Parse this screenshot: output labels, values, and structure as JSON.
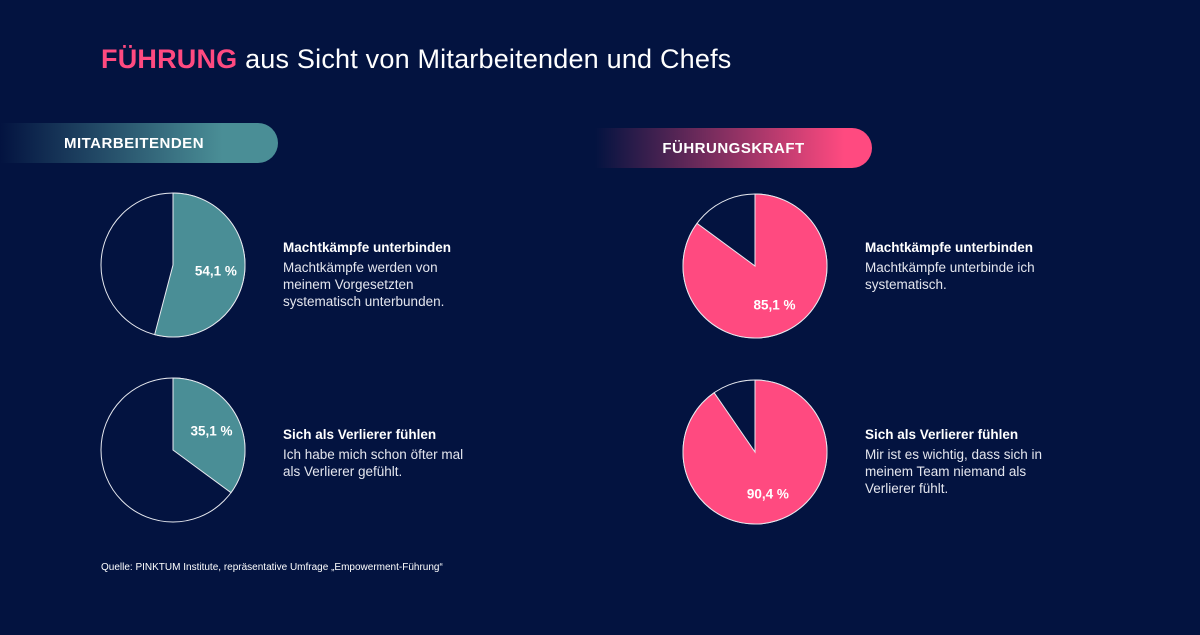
{
  "title": {
    "highlight": "FÜHRUNG",
    "rest": " aus Sicht von Mitarbeitenden und Chefs"
  },
  "colors": {
    "background": "#031340",
    "employee": "#4a8e96",
    "leader": "#ff4a80",
    "outline": "#e8eaf0"
  },
  "chart_data": [
    {
      "type": "pie",
      "group": "MITARBEITENDEN",
      "label": "54,1 %",
      "value": 54.1,
      "rest": 45.9,
      "heading": "Machtkämpfe unterbinden",
      "text": "Machtkämpfe werden von meinem Vorgesetzten systematisch unterbunden.",
      "color": "#4a8e96"
    },
    {
      "type": "pie",
      "group": "MITARBEITENDEN",
      "label": "35,1 %",
      "value": 35.1,
      "rest": 64.9,
      "heading": "Sich als Verlierer fühlen",
      "text": "Ich habe mich schon öfter mal als Verlierer gefühlt.",
      "color": "#4a8e96"
    },
    {
      "type": "pie",
      "group": "FÜHRUNGSKRAFT",
      "label": "85,1 %",
      "value": 85.1,
      "rest": 14.9,
      "heading": "Machtkämpfe unterbinden",
      "text": "Machtkämpfe unterbinde ich systematisch.",
      "color": "#ff4a80"
    },
    {
      "type": "pie",
      "group": "FÜHRUNGSKRAFT",
      "label": "90,4 %",
      "value": 90.4,
      "rest": 9.6,
      "heading": "Sich als Verlierer fühlen",
      "text": "Mir ist es wichtig, dass sich in meinem Team niemand als Verlierer fühlt.",
      "color": "#ff4a80"
    }
  ],
  "groups": {
    "employee": "MITARBEITENDEN",
    "leader": "FÜHRUNGSKRAFT"
  },
  "source": "Quelle: PINKTUM Institute, repräsentative Umfrage „Empowerment-Führung“"
}
